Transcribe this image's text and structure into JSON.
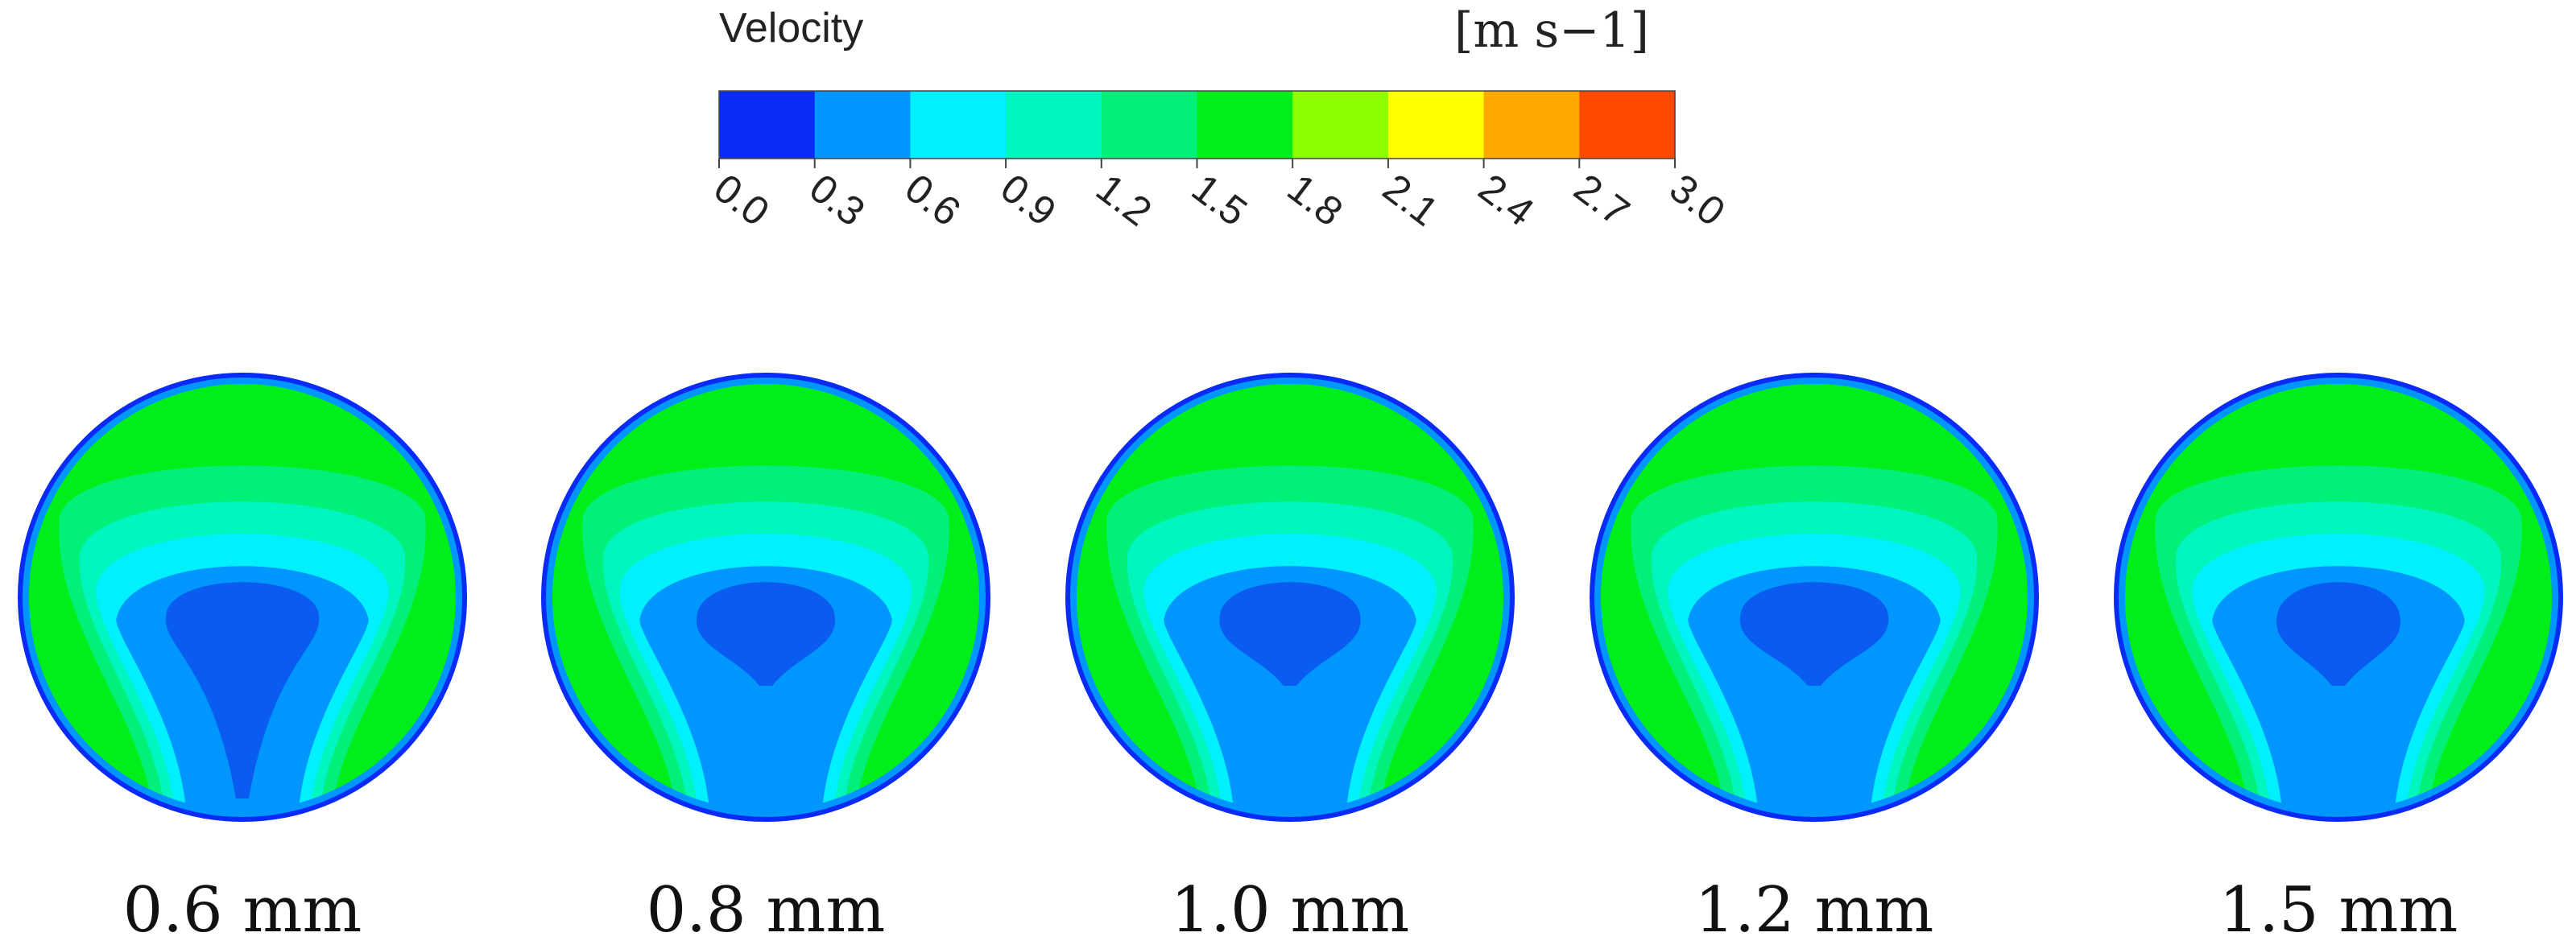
{
  "legend": {
    "title": "Velocity",
    "unit": "[m s−1]",
    "bins": [
      {
        "from": 0.0,
        "to": 0.3,
        "color": "#0a2bf5"
      },
      {
        "from": 0.3,
        "to": 0.6,
        "color": "#0096ff"
      },
      {
        "from": 0.6,
        "to": 0.9,
        "color": "#00f0ff"
      },
      {
        "from": 0.9,
        "to": 1.2,
        "color": "#00f5bf"
      },
      {
        "from": 1.2,
        "to": 1.5,
        "color": "#00f07a"
      },
      {
        "from": 1.5,
        "to": 1.8,
        "color": "#00ee1a"
      },
      {
        "from": 1.8,
        "to": 2.1,
        "color": "#8cff00"
      },
      {
        "from": 2.1,
        "to": 2.4,
        "color": "#ffff00"
      },
      {
        "from": 2.4,
        "to": 2.7,
        "color": "#ffa800"
      },
      {
        "from": 2.7,
        "to": 3.0,
        "color": "#ff4a00"
      }
    ],
    "ticks": [
      "0.0",
      "0.3",
      "0.6",
      "0.9",
      "1.2",
      "1.5",
      "1.8",
      "2.1",
      "2.4",
      "2.7",
      "3.0"
    ]
  },
  "panels": [
    {
      "caption": "0.6 mm",
      "core_size": 0.62
    },
    {
      "caption": "0.8 mm",
      "core_size": 0.56
    },
    {
      "caption": "1.0 mm",
      "core_size": 0.57
    },
    {
      "caption": "1.2 mm",
      "core_size": 0.6
    },
    {
      "caption": "1.5 mm",
      "core_size": 0.5
    }
  ]
}
